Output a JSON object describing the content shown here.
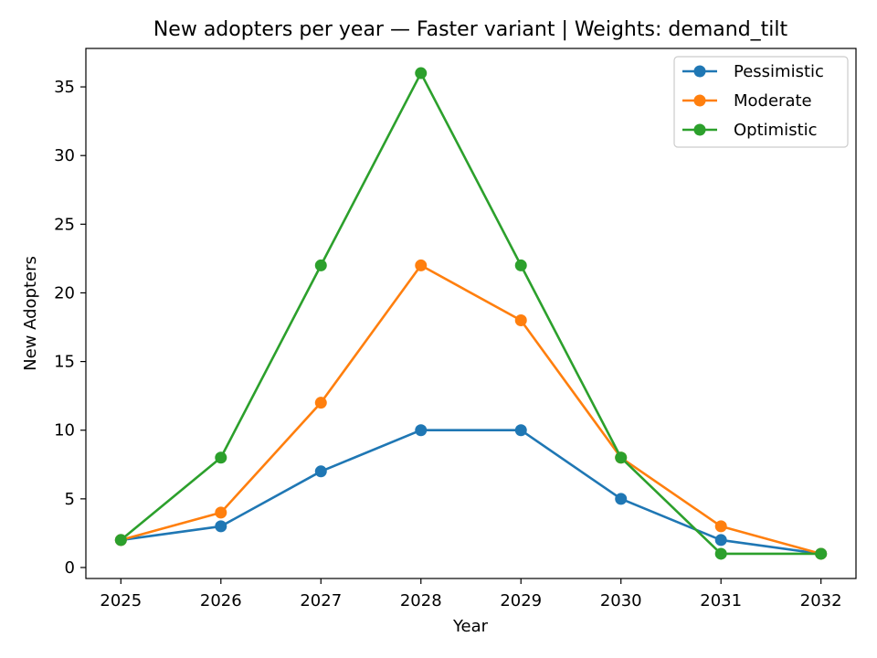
{
  "chart_data": {
    "type": "line",
    "title": "New adopters per year — Faster variant | Weights: demand_tilt",
    "xlabel": "Year",
    "ylabel": "New Adopters",
    "x": [
      2025,
      2026,
      2027,
      2028,
      2029,
      2030,
      2031,
      2032
    ],
    "x_tick_labels": [
      "2025",
      "2026",
      "2027",
      "2028",
      "2029",
      "2030",
      "2031",
      "2032"
    ],
    "xlim": [
      2024.65,
      2032.35
    ],
    "ylim": [
      -0.8,
      37.8
    ],
    "y_ticks": [
      0,
      5,
      10,
      15,
      20,
      25,
      30,
      35
    ],
    "y_tick_labels": [
      "0",
      "5",
      "10",
      "15",
      "20",
      "25",
      "30",
      "35"
    ],
    "grid": false,
    "legend_position": "top-right",
    "series": [
      {
        "name": "Pessimistic",
        "color": "#1f77b4",
        "values": [
          2,
          3,
          7,
          10,
          10,
          5,
          2,
          1
        ]
      },
      {
        "name": "Moderate",
        "color": "#ff7f0e",
        "values": [
          2,
          4,
          12,
          22,
          18,
          8,
          3,
          1
        ]
      },
      {
        "name": "Optimistic",
        "color": "#2ca02c",
        "values": [
          2,
          8,
          22,
          36,
          22,
          8,
          1,
          1
        ]
      }
    ]
  }
}
